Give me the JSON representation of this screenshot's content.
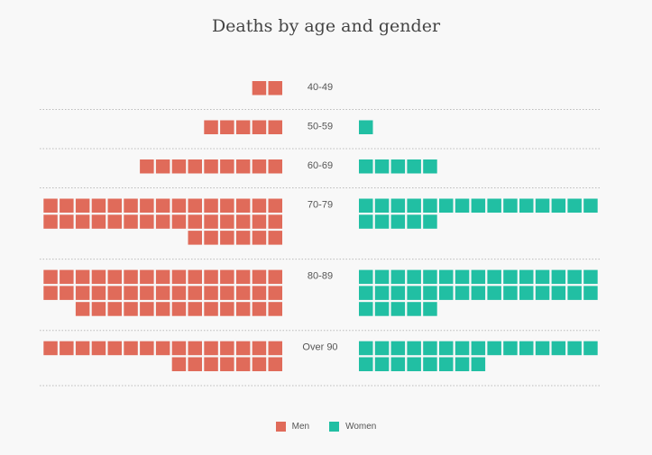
{
  "colors": {
    "men": "#e06b5a",
    "women": "#21bfa3"
  },
  "chart_data": {
    "type": "waffle",
    "title": "Deaths by age and gender",
    "categories": [
      "40-49",
      "50-59",
      "60-69",
      "70-79",
      "80-89",
      "Over 90"
    ],
    "series": [
      {
        "name": "Men",
        "color": "#e06b5a",
        "values": [
          2,
          5,
          9,
          36,
          43,
          22
        ]
      },
      {
        "name": "Women",
        "color": "#21bfa3",
        "values": [
          0,
          1,
          5,
          20,
          35,
          23
        ]
      }
    ],
    "icons_per_row": 15,
    "legend_placement": "bottom-center"
  }
}
